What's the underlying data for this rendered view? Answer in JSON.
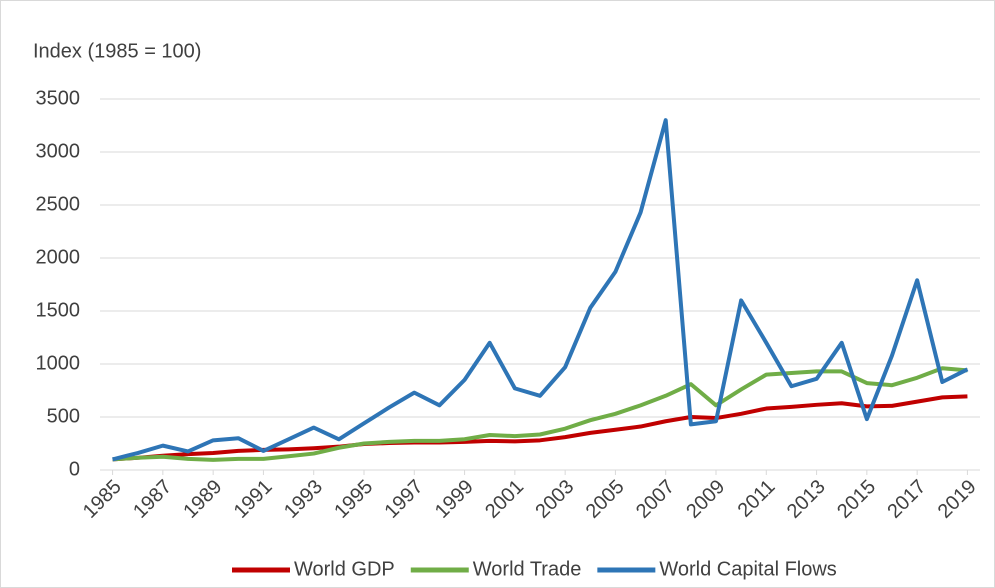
{
  "chart_data": {
    "type": "line",
    "title": "Index (1985 = 100)",
    "x": [
      1985,
      1986,
      1987,
      1988,
      1989,
      1990,
      1991,
      1992,
      1993,
      1994,
      1995,
      1996,
      1997,
      1998,
      1999,
      2000,
      2001,
      2002,
      2003,
      2004,
      2005,
      2006,
      2007,
      2008,
      2009,
      2010,
      2011,
      2012,
      2013,
      2014,
      2015,
      2016,
      2017,
      2018,
      2019
    ],
    "xlim": [
      1984.5,
      2019.5
    ],
    "xticks": [
      1985,
      1987,
      1989,
      1991,
      1993,
      1995,
      1997,
      1999,
      2001,
      2003,
      2005,
      2007,
      2009,
      2011,
      2013,
      2015,
      2017,
      2019
    ],
    "ylim": [
      0,
      3500
    ],
    "yticks": [
      0,
      500,
      1000,
      1500,
      2000,
      2500,
      3000,
      3500
    ],
    "grid": true,
    "legend": "bottom",
    "series": [
      {
        "name": "World GDP",
        "color": "#c00000",
        "values": [
          100,
          115,
          135,
          150,
          160,
          180,
          190,
          195,
          205,
          220,
          245,
          255,
          260,
          260,
          265,
          275,
          270,
          280,
          310,
          350,
          380,
          410,
          460,
          500,
          490,
          530,
          580,
          595,
          615,
          630,
          600,
          605,
          645,
          685,
          695
        ]
      },
      {
        "name": "World Trade",
        "color": "#70ad47",
        "values": [
          100,
          115,
          125,
          105,
          95,
          105,
          105,
          130,
          155,
          210,
          250,
          265,
          275,
          275,
          290,
          330,
          320,
          335,
          390,
          470,
          530,
          610,
          700,
          810,
          610,
          760,
          900,
          915,
          930,
          930,
          820,
          800,
          870,
          960,
          940
        ]
      },
      {
        "name": "World Capital Flows",
        "color": "#2e75b6",
        "values": [
          100,
          160,
          230,
          175,
          280,
          300,
          180,
          290,
          400,
          290,
          440,
          590,
          730,
          610,
          850,
          1200,
          770,
          700,
          970,
          1530,
          1870,
          2430,
          3300,
          430,
          460,
          1600,
          1200,
          790,
          860,
          1200,
          480,
          1080,
          1790,
          830,
          950
        ]
      }
    ]
  }
}
